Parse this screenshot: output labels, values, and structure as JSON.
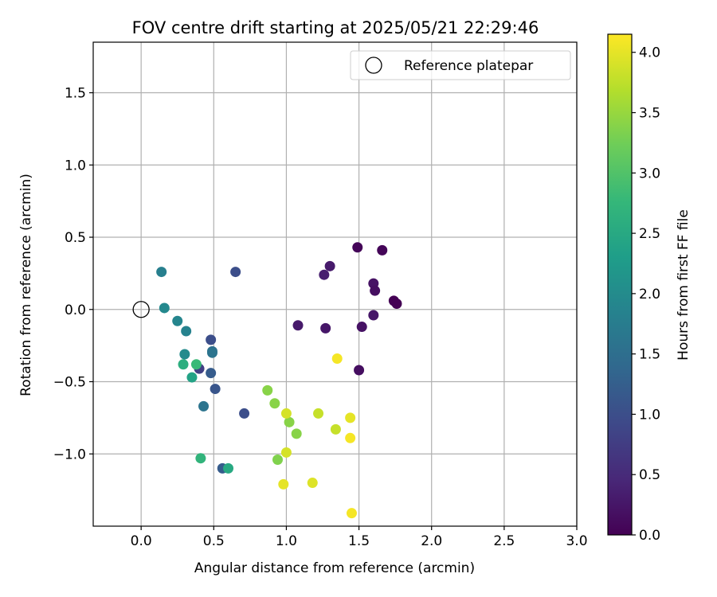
{
  "chart_data": {
    "type": "scatter",
    "title": "FOV centre drift starting at 2025/05/21 22:29:46",
    "xlabel": "Angular distance from reference (arcmin)",
    "ylabel": "Rotation from reference (arcmin)",
    "xlim": [
      -0.33,
      3.0
    ],
    "ylim": [
      -1.5,
      1.85
    ],
    "xticks": [
      0.0,
      0.5,
      1.0,
      1.5,
      2.0,
      2.5,
      3.0
    ],
    "xtick_labels": [
      "0.0",
      "0.5",
      "1.0",
      "1.5",
      "2.0",
      "2.5",
      "3.0"
    ],
    "yticks": [
      -1.0,
      -0.5,
      0.0,
      0.5,
      1.0,
      1.5
    ],
    "ytick_labels": [
      "−1.0",
      "−0.5",
      "0.0",
      "0.5",
      "1.0",
      "1.5"
    ],
    "grid": true,
    "legend": {
      "position": "top-right",
      "label": "Reference platepar"
    },
    "reference_point": {
      "x": 0.0,
      "y": 0.0
    },
    "colorbar": {
      "label": "Hours from first FF file",
      "range": [
        0.0,
        4.15
      ],
      "ticks": [
        0.0,
        0.5,
        1.0,
        1.5,
        2.0,
        2.5,
        3.0,
        3.5,
        4.0
      ],
      "tick_labels": [
        "0.0",
        "0.5",
        "1.0",
        "1.5",
        "2.0",
        "2.5",
        "3.0",
        "3.5",
        "4.0"
      ],
      "colormap": "viridis"
    },
    "points": [
      {
        "x": 1.49,
        "y": 0.43,
        "t": 0.05
      },
      {
        "x": 1.66,
        "y": 0.41,
        "t": 0.05
      },
      {
        "x": 1.3,
        "y": 0.3,
        "t": 0.3
      },
      {
        "x": 1.26,
        "y": 0.24,
        "t": 0.35
      },
      {
        "x": 1.6,
        "y": 0.18,
        "t": 0.2
      },
      {
        "x": 1.61,
        "y": 0.13,
        "t": 0.15
      },
      {
        "x": 1.74,
        "y": 0.06,
        "t": 0.0
      },
      {
        "x": 1.76,
        "y": 0.04,
        "t": 0.0
      },
      {
        "x": 1.6,
        "y": -0.04,
        "t": 0.25
      },
      {
        "x": 1.08,
        "y": -0.11,
        "t": 0.3
      },
      {
        "x": 1.27,
        "y": -0.13,
        "t": 0.25
      },
      {
        "x": 1.52,
        "y": -0.12,
        "t": 0.2
      },
      {
        "x": 1.5,
        "y": -0.42,
        "t": 0.15
      },
      {
        "x": 0.65,
        "y": 0.26,
        "t": 1.0
      },
      {
        "x": 0.48,
        "y": -0.21,
        "t": 1.0
      },
      {
        "x": 0.49,
        "y": -0.29,
        "t": 1.5
      },
      {
        "x": 0.49,
        "y": -0.3,
        "t": 1.6
      },
      {
        "x": 0.4,
        "y": -0.41,
        "t": 0.8
      },
      {
        "x": 0.48,
        "y": -0.44,
        "t": 1.2
      },
      {
        "x": 0.51,
        "y": -0.55,
        "t": 1.1
      },
      {
        "x": 0.43,
        "y": -0.67,
        "t": 1.6
      },
      {
        "x": 0.71,
        "y": -0.72,
        "t": 1.0
      },
      {
        "x": 0.56,
        "y": -1.1,
        "t": 1.2
      },
      {
        "x": 0.14,
        "y": 0.26,
        "t": 1.8
      },
      {
        "x": 0.16,
        "y": 0.01,
        "t": 1.95
      },
      {
        "x": 0.25,
        "y": -0.08,
        "t": 1.9
      },
      {
        "x": 0.31,
        "y": -0.15,
        "t": 1.85
      },
      {
        "x": 0.3,
        "y": -0.31,
        "t": 2.0
      },
      {
        "x": 0.29,
        "y": -0.38,
        "t": 2.6
      },
      {
        "x": 0.38,
        "y": -0.38,
        "t": 2.8
      },
      {
        "x": 0.35,
        "y": -0.47,
        "t": 2.4
      },
      {
        "x": 0.41,
        "y": -1.03,
        "t": 2.7
      },
      {
        "x": 0.6,
        "y": -1.1,
        "t": 2.5
      },
      {
        "x": 0.87,
        "y": -0.56,
        "t": 3.4
      },
      {
        "x": 0.92,
        "y": -0.65,
        "t": 3.4
      },
      {
        "x": 1.02,
        "y": -0.78,
        "t": 3.4
      },
      {
        "x": 1.07,
        "y": -0.86,
        "t": 3.4
      },
      {
        "x": 0.94,
        "y": -1.04,
        "t": 3.35
      },
      {
        "x": 1.35,
        "y": -0.34,
        "t": 4.1
      },
      {
        "x": 1.0,
        "y": -0.72,
        "t": 3.9
      },
      {
        "x": 1.22,
        "y": -0.72,
        "t": 3.8
      },
      {
        "x": 1.44,
        "y": -0.75,
        "t": 4.0
      },
      {
        "x": 1.34,
        "y": -0.83,
        "t": 3.8
      },
      {
        "x": 1.44,
        "y": -0.89,
        "t": 4.1
      },
      {
        "x": 1.0,
        "y": -0.99,
        "t": 3.9
      },
      {
        "x": 0.98,
        "y": -1.21,
        "t": 4.0
      },
      {
        "x": 1.18,
        "y": -1.2,
        "t": 3.95
      },
      {
        "x": 1.45,
        "y": -1.41,
        "t": 4.1
      }
    ]
  }
}
